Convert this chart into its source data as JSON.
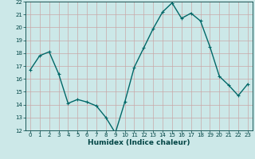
{
  "x": [
    0,
    1,
    2,
    3,
    4,
    5,
    6,
    7,
    8,
    9,
    10,
    11,
    12,
    13,
    14,
    15,
    16,
    17,
    18,
    19,
    20,
    21,
    22,
    23
  ],
  "y": [
    16.7,
    17.8,
    18.1,
    16.4,
    14.1,
    14.4,
    14.2,
    13.9,
    13.0,
    11.8,
    14.2,
    16.9,
    18.4,
    19.9,
    21.2,
    21.9,
    20.7,
    21.1,
    20.5,
    18.5,
    16.2,
    15.5,
    14.7,
    15.6
  ],
  "bg_color": "#cce8e8",
  "plot_bg_color": "#cce8e8",
  "grid_color": "#c8a8a8",
  "line_color": "#006868",
  "marker_color": "#006868",
  "xlabel": "Humidex (Indice chaleur)",
  "xlabel_color": "#004444",
  "tick_color": "#004444",
  "ylim": [
    12,
    22
  ],
  "xlim_min": -0.5,
  "xlim_max": 23.5,
  "yticks": [
    12,
    13,
    14,
    15,
    16,
    17,
    18,
    19,
    20,
    21,
    22
  ],
  "xticks": [
    0,
    1,
    2,
    3,
    4,
    5,
    6,
    7,
    8,
    9,
    10,
    11,
    12,
    13,
    14,
    15,
    16,
    17,
    18,
    19,
    20,
    21,
    22,
    23
  ],
  "tick_fontsize": 5,
  "xlabel_fontsize": 6.5,
  "linewidth": 1.0,
  "markersize": 3.5
}
